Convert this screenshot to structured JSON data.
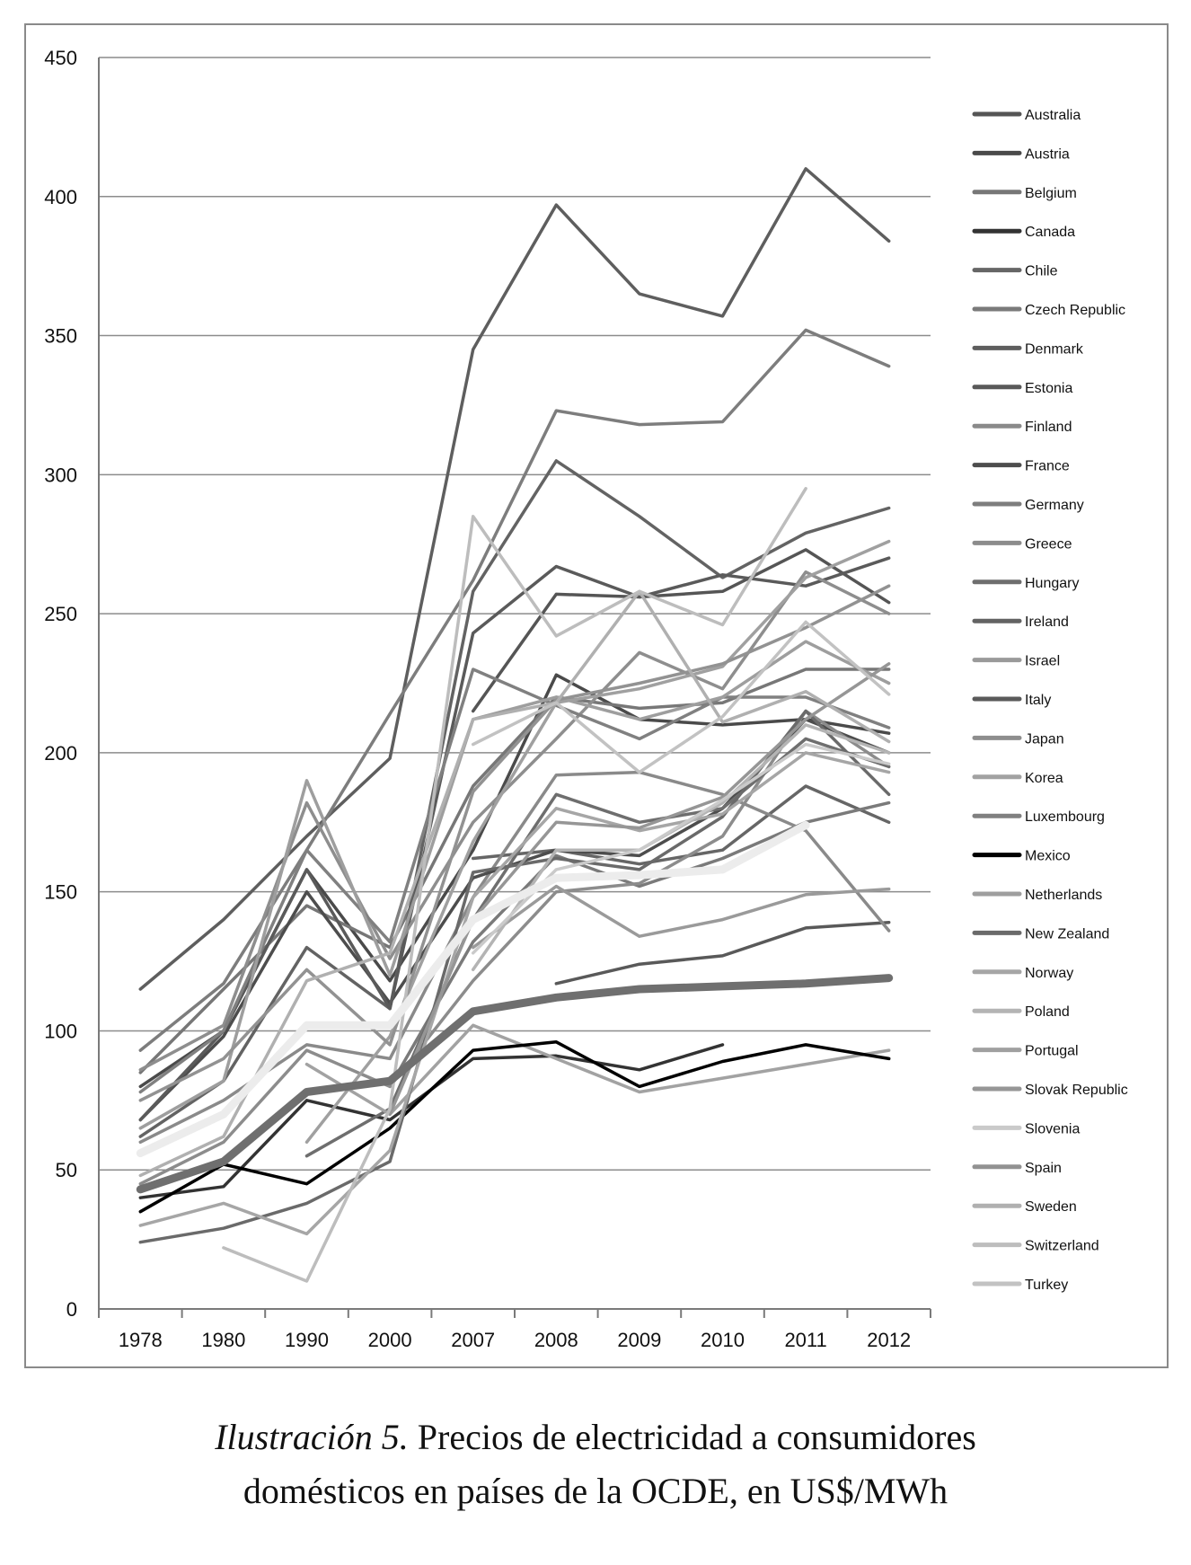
{
  "chart_data": {
    "type": "line",
    "x": [
      "1978",
      "1980",
      "1990",
      "2000",
      "2007",
      "2008",
      "2009",
      "2010",
      "2011",
      "2012"
    ],
    "ylim": [
      0,
      450
    ],
    "y_ticks": [
      0,
      50,
      100,
      150,
      200,
      250,
      300,
      350,
      400,
      450
    ],
    "grid": true,
    "legend_position": "right",
    "series": [
      {
        "name": "Australia",
        "color": "#555555",
        "values": [
          null,
          null,
          null,
          null,
          215,
          257,
          256,
          258,
          273,
          254
        ]
      },
      {
        "name": "Austria",
        "color": "#4a4a4a",
        "values": [
          80,
          100,
          158,
          118,
          165,
          228,
          212,
          210,
          212,
          207
        ]
      },
      {
        "name": "Belgium",
        "color": "#777777",
        "values": [
          85,
          115,
          145,
          130,
          188,
          220,
          216,
          218,
          230,
          230
        ]
      },
      {
        "name": "Canada",
        "color": "#333333",
        "values": [
          40,
          44,
          75,
          68,
          90,
          91,
          86,
          95,
          null,
          null
        ]
      },
      {
        "name": "Chile",
        "color": "#666666",
        "values": [
          null,
          null,
          null,
          null,
          162,
          165,
          160,
          165,
          188,
          175
        ]
      },
      {
        "name": "Czech Republic",
        "color": "#7a7a7a",
        "values": [
          null,
          null,
          null,
          80,
          132,
          163,
          152,
          162,
          175,
          182
        ]
      },
      {
        "name": "Denmark",
        "color": "#5e5e5e",
        "values": [
          115,
          140,
          170,
          198,
          345,
          397,
          365,
          357,
          410,
          384
        ]
      },
      {
        "name": "Estonia",
        "color": "#595959",
        "values": [
          null,
          null,
          null,
          null,
          null,
          117,
          124,
          127,
          137,
          139
        ]
      },
      {
        "name": "Finland",
        "color": "#8a8a8a",
        "values": [
          60,
          75,
          95,
          90,
          148,
          192,
          193,
          185,
          172,
          136
        ]
      },
      {
        "name": "France",
        "color": "#4d4d4d",
        "values": [
          68,
          98,
          150,
          110,
          155,
          165,
          163,
          180,
          212,
          200
        ]
      },
      {
        "name": "Germany",
        "color": "#7d7d7d",
        "values": [
          93,
          117,
          165,
          214,
          262,
          323,
          318,
          319,
          352,
          339
        ]
      },
      {
        "name": "Greece",
        "color": "#8c8c8c",
        "values": [
          45,
          60,
          93,
          80,
          118,
          150,
          153,
          170,
          215,
          195
        ]
      },
      {
        "name": "Hungary",
        "color": "#6e6e6e",
        "values": [
          null,
          null,
          55,
          72,
          140,
          185,
          175,
          180,
          205,
          195
        ]
      },
      {
        "name": "Ireland",
        "color": "#636363",
        "values": [
          62,
          82,
          130,
          108,
          258,
          305,
          285,
          263,
          279,
          288
        ]
      },
      {
        "name": "Israel",
        "color": "#9a9a9a",
        "values": [
          null,
          null,
          null,
          null,
          130,
          152,
          134,
          140,
          149,
          151
        ]
      },
      {
        "name": "Italy",
        "color": "#5a5a5a",
        "values": [
          68,
          100,
          158,
          108,
          243,
          267,
          256,
          264,
          260,
          270
        ]
      },
      {
        "name": "Japan",
        "color": "#8e8e8e",
        "values": [
          86,
          102,
          182,
          126,
          175,
          205,
          236,
          223,
          265,
          250
        ]
      },
      {
        "name": "Korea",
        "color": "#a2a2a2",
        "values": [
          null,
          null,
          88,
          70,
          102,
          90,
          78,
          83,
          88,
          93
        ]
      },
      {
        "name": "Luxembourg",
        "color": "#808080",
        "values": [
          78,
          100,
          165,
          132,
          230,
          217,
          205,
          220,
          220,
          209
        ]
      },
      {
        "name": "Mexico",
        "color": "#000000",
        "values": [
          35,
          52,
          45,
          65,
          93,
          96,
          80,
          89,
          95,
          90
        ]
      },
      {
        "name": "Netherlands",
        "color": "#9e9e9e",
        "values": [
          65,
          82,
          190,
          120,
          212,
          220,
          212,
          220,
          240,
          225
        ]
      },
      {
        "name": "New Zealand",
        "color": "#6a6a6a",
        "values": [
          24,
          29,
          38,
          53,
          157,
          162,
          158,
          177,
          215,
          185
        ]
      },
      {
        "name": "Norway",
        "color": "#a6a6a6",
        "values": [
          30,
          38,
          27,
          57,
          148,
          180,
          172,
          178,
          200,
          193
        ]
      },
      {
        "name": "Poland",
        "color": "#b4b4b4",
        "values": [
          null,
          null,
          null,
          null,
          122,
          165,
          165,
          182,
          210,
          200
        ]
      },
      {
        "name": "Portugal",
        "color": "#a0a0a0",
        "values": [
          null,
          null,
          60,
          98,
          168,
          218,
          223,
          231,
          263,
          276
        ]
      },
      {
        "name": "Slovak Republic",
        "color": "#969696",
        "values": [
          null,
          null,
          null,
          70,
          140,
          175,
          173,
          184,
          212,
          232
        ]
      },
      {
        "name": "Slovenia",
        "color": "#cacaca",
        "values": [
          null,
          null,
          null,
          null,
          128,
          158,
          165,
          183,
          203,
          196
        ]
      },
      {
        "name": "Spain",
        "color": "#929292",
        "values": [
          75,
          90,
          122,
          95,
          186,
          219,
          225,
          232,
          245,
          260
        ]
      },
      {
        "name": "Sweden",
        "color": "#b0b0b0",
        "values": [
          48,
          62,
          118,
          128,
          212,
          218,
          258,
          211,
          222,
          204
        ]
      },
      {
        "name": "Switzerland",
        "color": "#bdbdbd",
        "values": [
          null,
          22,
          10,
          72,
          285,
          242,
          258,
          246,
          295,
          null
        ]
      },
      {
        "name": "Turkey",
        "color": "#c2c2c2",
        "values": [
          null,
          null,
          null,
          null,
          203,
          218,
          193,
          213,
          247,
          221
        ]
      },
      {
        "name": "",
        "color": "#6f6f6f",
        "width": 9,
        "values": [
          43,
          53,
          78,
          82,
          107,
          112,
          115,
          116,
          117,
          119
        ]
      },
      {
        "name": "",
        "color": "#ececec",
        "width": 9,
        "values": [
          56,
          70,
          102,
          102,
          140,
          155,
          156,
          158,
          174,
          null
        ]
      }
    ]
  },
  "caption": {
    "label": "Ilustración 5.",
    "line1_rest": " Precios de electricidad a consumidores",
    "line2": "domésticos en países de la OCDE, en US$/MWh"
  }
}
